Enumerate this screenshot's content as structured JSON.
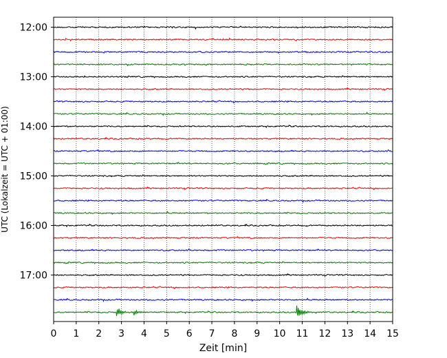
{
  "chart_data": {
    "type": "line",
    "xlabel": "Zeit  [min]",
    "ylabel": "UTC (Lokalzeit = UTC + 01:00)",
    "xlim": [
      0,
      15
    ],
    "x_ticks": [
      0,
      1,
      2,
      3,
      4,
      5,
      6,
      7,
      8,
      9,
      10,
      11,
      12,
      13,
      14,
      15
    ],
    "x_tick_labels": [
      "0",
      "1",
      "2",
      "3",
      "4",
      "5",
      "6",
      "7",
      "8",
      "9",
      "10",
      "11",
      "12",
      "13",
      "14",
      "15"
    ],
    "y_tick_labels": [
      "12:00",
      "13:00",
      "14:00",
      "15:00",
      "16:00",
      "17:00"
    ],
    "grid": {
      "vertical": true,
      "style": "dotted"
    },
    "trace_colors": [
      "#000000",
      "#ff0000",
      "#0000ff",
      "#008000"
    ],
    "traces": [
      {
        "start": "12:00",
        "color": "#000000"
      },
      {
        "start": "12:15",
        "color": "#ff0000"
      },
      {
        "start": "12:30",
        "color": "#0000ff"
      },
      {
        "start": "12:45",
        "color": "#008000"
      },
      {
        "start": "13:00",
        "color": "#000000"
      },
      {
        "start": "13:15",
        "color": "#ff0000"
      },
      {
        "start": "13:30",
        "color": "#0000ff"
      },
      {
        "start": "13:45",
        "color": "#008000"
      },
      {
        "start": "14:00",
        "color": "#000000"
      },
      {
        "start": "14:15",
        "color": "#ff0000"
      },
      {
        "start": "14:30",
        "color": "#0000ff"
      },
      {
        "start": "14:45",
        "color": "#008000"
      },
      {
        "start": "15:00",
        "color": "#000000"
      },
      {
        "start": "15:15",
        "color": "#ff0000"
      },
      {
        "start": "15:30",
        "color": "#0000ff"
      },
      {
        "start": "15:45",
        "color": "#008000"
      },
      {
        "start": "16:00",
        "color": "#000000"
      },
      {
        "start": "16:15",
        "color": "#ff0000"
      },
      {
        "start": "16:30",
        "color": "#0000ff"
      },
      {
        "start": "16:45",
        "color": "#008000"
      },
      {
        "start": "17:00",
        "color": "#000000"
      },
      {
        "start": "17:15",
        "color": "#ff0000"
      },
      {
        "start": "17:30",
        "color": "#0000ff"
      },
      {
        "start": "17:45",
        "color": "#008000"
      }
    ],
    "events": [
      {
        "trace": "17:45",
        "x": 2.8,
        "amplitude": "medium"
      },
      {
        "trace": "17:45",
        "x": 3.6,
        "amplitude": "small"
      },
      {
        "trace": "17:45",
        "x": 10.8,
        "amplitude": "large"
      }
    ]
  }
}
